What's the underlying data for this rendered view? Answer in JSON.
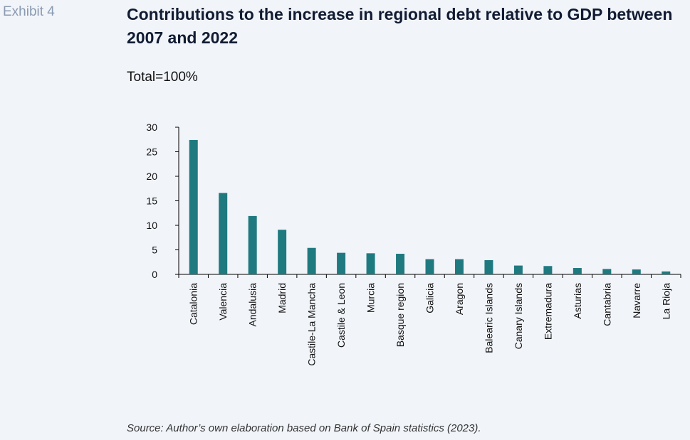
{
  "exhibit_label": "Exhibit 4",
  "title": "Contributions to the increase in regional debt relative to GDP between 2007 and 2022",
  "subtitle": "Total=100%",
  "source": "Source: Author’s own elaboration based on Bank of Spain statistics (2023).",
  "colors": {
    "bar": "#1f7a80",
    "axis": "#000000",
    "background": "#f1f4f9"
  },
  "chart_data": {
    "type": "bar",
    "categories": [
      "Catalonia",
      "Valencia",
      "Andalusia",
      "Madrid",
      "Castile-La Mancha",
      "Castile & Leon",
      "Murcia",
      "Basque region",
      "Galicia",
      "Aragon",
      "Balearic Islands",
      "Canary Islands",
      "Extremadura",
      "Asturias",
      "Cantabria",
      "Navarre",
      "La Rioja"
    ],
    "values": [
      27.4,
      16.6,
      11.9,
      9.1,
      5.4,
      4.4,
      4.3,
      4.2,
      3.1,
      3.1,
      2.9,
      1.8,
      1.7,
      1.3,
      1.1,
      1.0,
      0.6
    ],
    "yticks": [
      0,
      5,
      10,
      15,
      20,
      25,
      30
    ],
    "ylim": [
      0,
      30
    ],
    "grid": false,
    "legend": "none"
  }
}
